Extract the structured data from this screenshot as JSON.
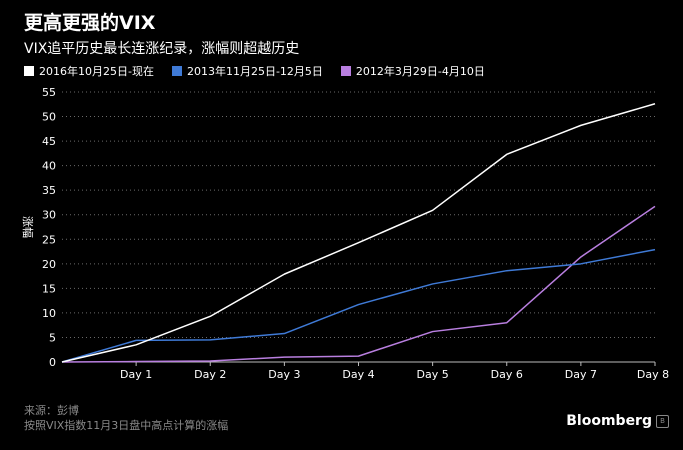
{
  "chart_data": {
    "type": "line",
    "title": "更高更强的VIX",
    "subtitle": "VIX追平历史最长连涨纪录，涨幅则超越历史",
    "ylabel": "涨幅",
    "ylim": [
      0,
      55
    ],
    "yticks": [
      0,
      5,
      10,
      15,
      20,
      25,
      30,
      35,
      40,
      45,
      50,
      55
    ],
    "x": [
      0,
      1,
      2,
      3,
      4,
      5,
      6,
      7,
      8
    ],
    "xtick_labels": [
      "",
      "Day 1",
      "Day 2",
      "Day 3",
      "Day 4",
      "Day 5",
      "Day 6",
      "Day 7",
      "Day 8"
    ],
    "grid": true,
    "legend_position": "top-left",
    "series": [
      {
        "name": "2016年10月25日-现在",
        "color": "#ffffff",
        "values": [
          0,
          3.5,
          9.3,
          17.9,
          24.3,
          30.9,
          42.3,
          48.2,
          52.6
        ]
      },
      {
        "name": "2013年11月25日-12月5日",
        "color": "#3f7ad6",
        "values": [
          0,
          4.4,
          4.5,
          5.8,
          11.7,
          15.9,
          18.6,
          20.0,
          22.9
        ]
      },
      {
        "name": "2012年3月29日-4月10日",
        "color": "#b97fe0",
        "values": [
          0,
          0.1,
          0.2,
          1.0,
          1.2,
          6.2,
          8.0,
          21.4,
          31.7
        ]
      }
    ]
  },
  "footer": {
    "source": "来源：彭博",
    "note": "按照VIX指数11月3日盘中高点计算的涨幅"
  },
  "brand": {
    "name": "Bloomberg",
    "mark_icon": "bloomberg-terminal-icon"
  }
}
